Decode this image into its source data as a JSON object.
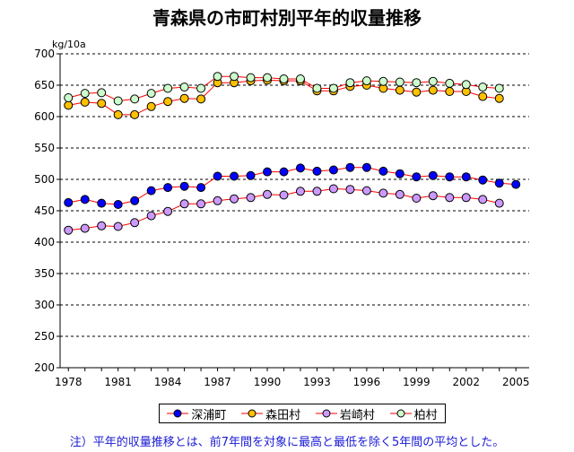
{
  "chart_data": {
    "type": "line",
    "title": "青森県の市町村別平年的収量推移",
    "ylabel": "kg/10a",
    "xlabel": "",
    "xlim": [
      1978,
      2005
    ],
    "ylim": [
      200,
      700
    ],
    "yticks": [
      200,
      250,
      300,
      350,
      400,
      450,
      500,
      550,
      600,
      650,
      700
    ],
    "xticks": [
      1978,
      1981,
      1984,
      1987,
      1990,
      1993,
      1996,
      1999,
      2002,
      2005
    ],
    "grid": "horizontal dashed",
    "legend_position": "bottom",
    "x": [
      1978,
      1979,
      1980,
      1981,
      1982,
      1983,
      1984,
      1985,
      1986,
      1987,
      1988,
      1989,
      1990,
      1991,
      1992,
      1993,
      1994,
      1995,
      1996,
      1997,
      1998,
      1999,
      2000,
      2001,
      2002,
      2003,
      2004,
      2005
    ],
    "series": [
      {
        "name": "深浦町",
        "color": "#0000ff",
        "values": [
          463,
          468,
          462,
          460,
          466,
          482,
          487,
          489,
          487,
          505,
          505,
          506,
          512,
          512,
          518,
          513,
          515,
          519,
          519,
          513,
          509,
          504,
          506,
          504,
          504,
          499,
          494,
          492
        ]
      },
      {
        "name": "森田村",
        "color": "#ffc000",
        "values": [
          618,
          623,
          621,
          603,
          603,
          616,
          624,
          629,
          628,
          654,
          654,
          657,
          658,
          657,
          657,
          641,
          641,
          648,
          650,
          645,
          642,
          639,
          642,
          640,
          640,
          632,
          629,
          null
        ]
      },
      {
        "name": "岩崎村",
        "color": "#cc99ff",
        "values": [
          419,
          422,
          426,
          425,
          431,
          442,
          449,
          461,
          461,
          466,
          469,
          471,
          476,
          475,
          481,
          481,
          485,
          484,
          482,
          478,
          476,
          470,
          474,
          471,
          471,
          468,
          462,
          null
        ]
      },
      {
        "name": "柏村",
        "color": "#ccffcc",
        "values": [
          630,
          637,
          638,
          625,
          628,
          637,
          645,
          647,
          645,
          664,
          664,
          662,
          662,
          660,
          660,
          645,
          645,
          654,
          657,
          656,
          655,
          654,
          656,
          653,
          651,
          647,
          645,
          null
        ]
      }
    ]
  },
  "note": "注）平年的収量推移とは、前7年間を対象に最高と最低を除く5年間の平均とした。"
}
